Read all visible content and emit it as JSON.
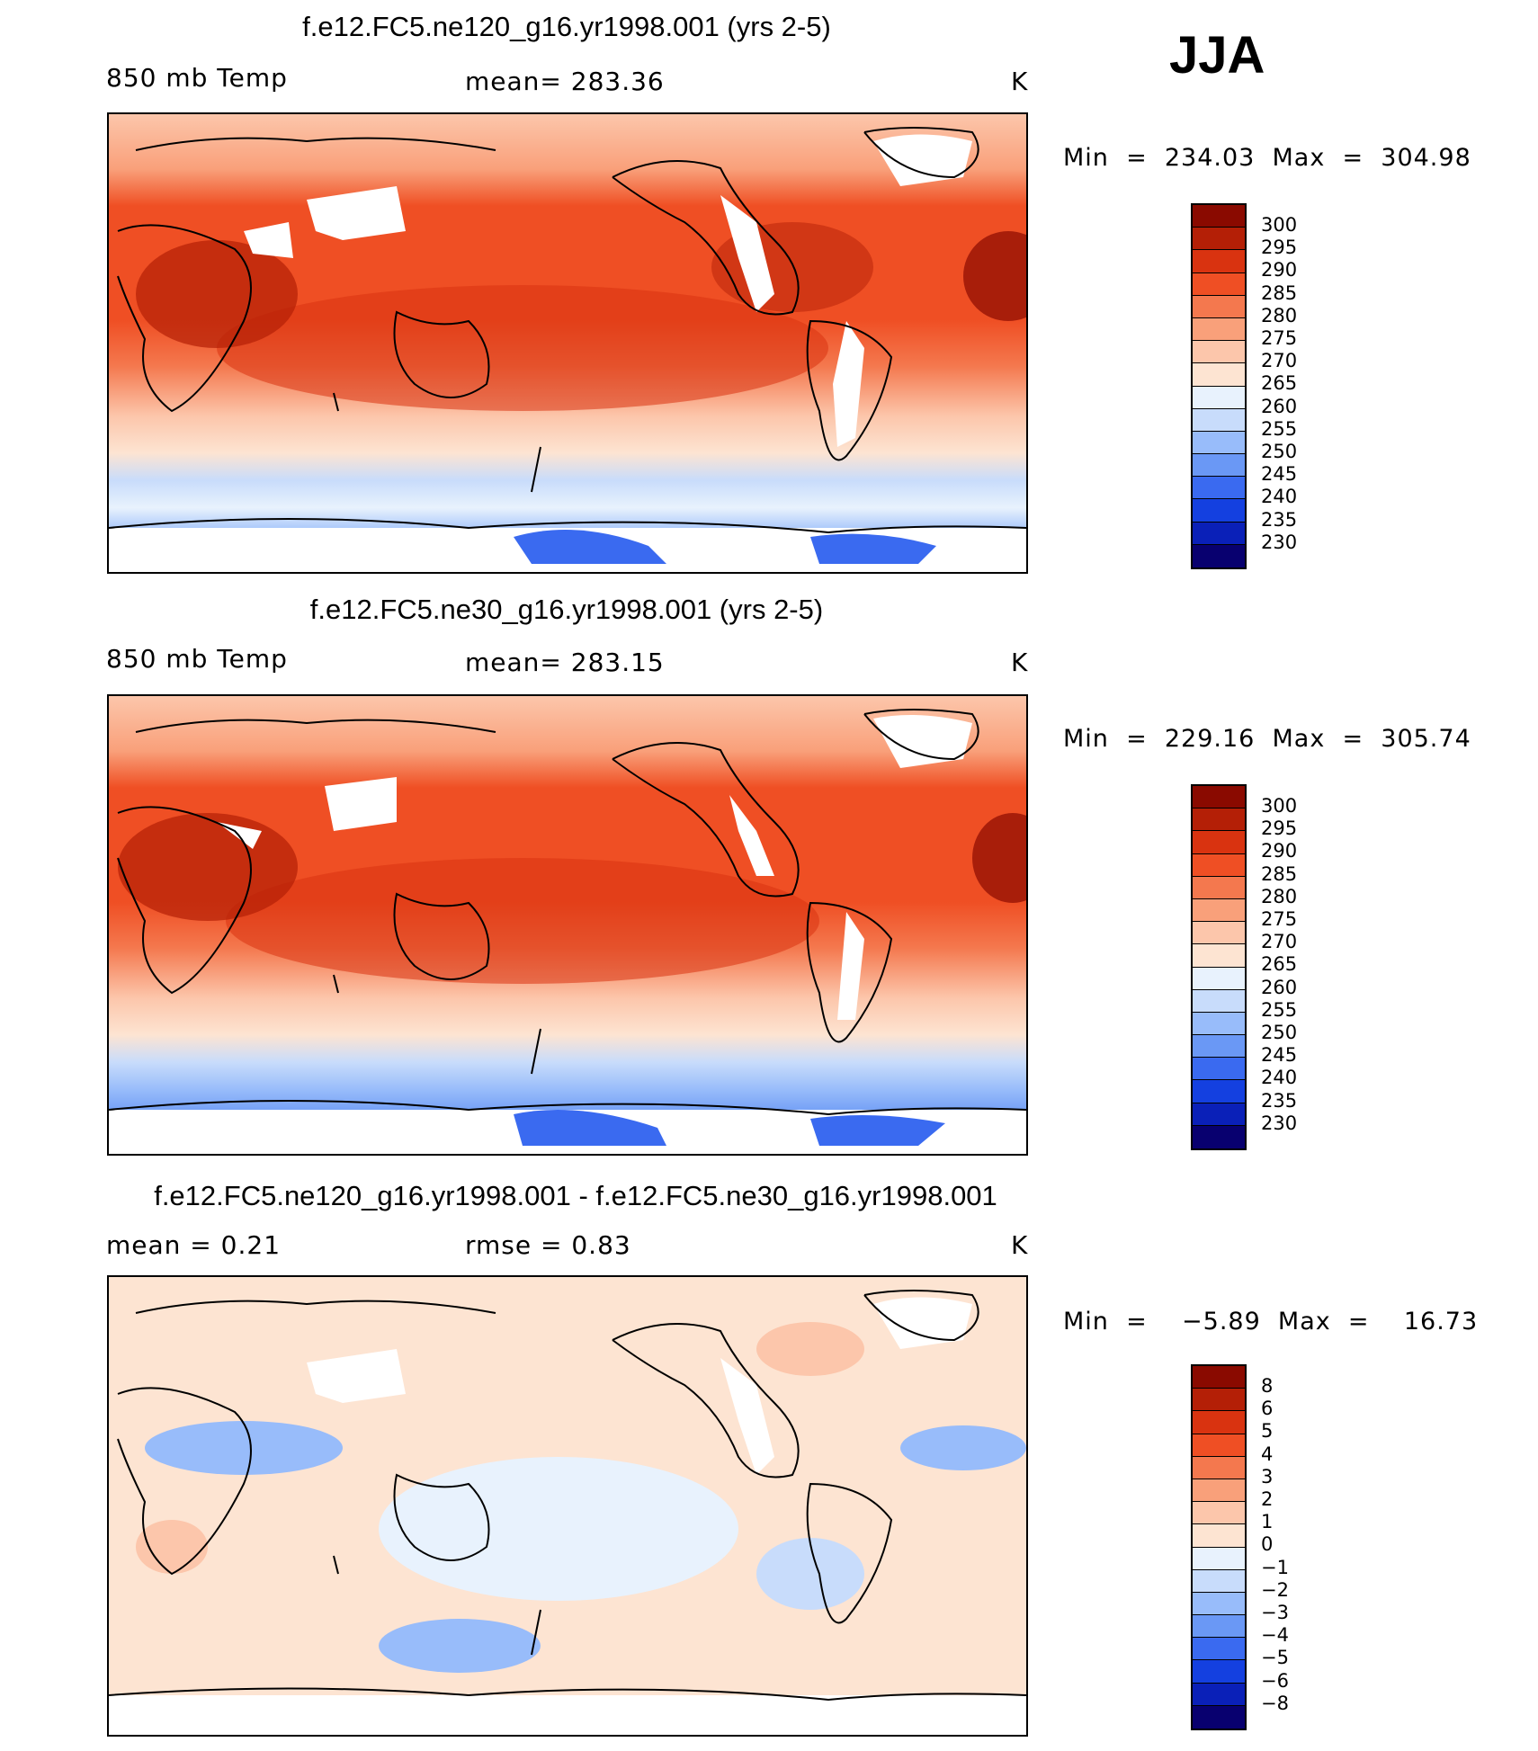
{
  "season": "JJA",
  "colors": {
    "diverging": [
      "#08006f",
      "#0a20b8",
      "#1440e0",
      "#3a6af0",
      "#6a98f5",
      "#98bcfa",
      "#c8dcfb",
      "#e8f2fd",
      "#fde4d2",
      "#fcc6ab",
      "#f9a07a",
      "#f4784e",
      "#ef4f24",
      "#d93310",
      "#b41f06",
      "#8a0a00"
    ]
  },
  "panels": [
    {
      "title": "f.e12.FC5.ne120_g16.yr1998.001 (yrs 2-5)",
      "left_label": "850 mb Temp",
      "center_label": "mean=  283.36",
      "units": "K",
      "minmax": "Min  =  234.03  Max  =  304.98",
      "colorbar_labels": [
        "300",
        "295",
        "290",
        "285",
        "280",
        "275",
        "270",
        "265",
        "260",
        "255",
        "250",
        "245",
        "240",
        "235",
        "230"
      ]
    },
    {
      "title": "f.e12.FC5.ne30_g16.yr1998.001 (yrs 2-5)",
      "left_label": "850 mb Temp",
      "center_label": "mean=  283.15",
      "units": "K",
      "minmax": "Min  =  229.16  Max  =  305.74",
      "colorbar_labels": [
        "300",
        "295",
        "290",
        "285",
        "280",
        "275",
        "270",
        "265",
        "260",
        "255",
        "250",
        "245",
        "240",
        "235",
        "230"
      ]
    },
    {
      "title": "f.e12.FC5.ne120_g16.yr1998.001 - f.e12.FC5.ne30_g16.yr1998.001",
      "left_label": "mean =     0.21",
      "center_label": "rmse =     0.83",
      "units": "K",
      "minmax": "Min  =    −5.89  Max  =    16.73",
      "colorbar_labels": [
        "8",
        "6",
        "5",
        "4",
        "3",
        "2",
        "1",
        "0",
        "−1",
        "−2",
        "−3",
        "−4",
        "−5",
        "−6",
        "−8"
      ]
    }
  ]
}
